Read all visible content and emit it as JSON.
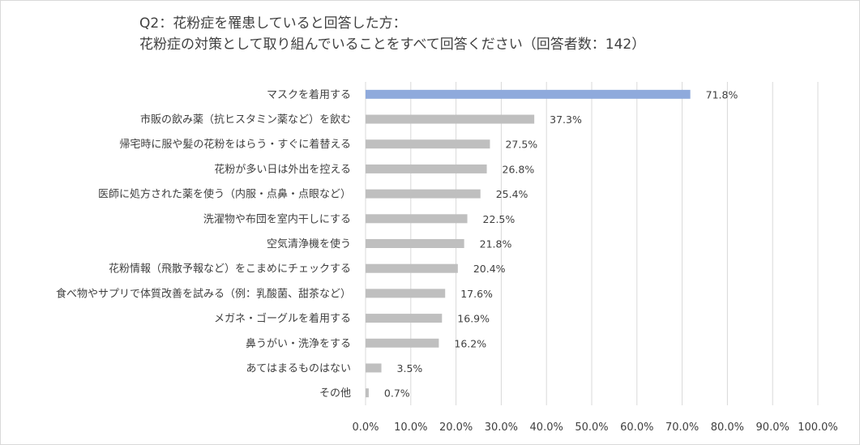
{
  "chart_data": {
    "type": "bar",
    "orientation": "horizontal",
    "title_lines": [
      "Q2：花粉症を罹患していると回答した方：",
      "花粉症の対策として取り組んでいることをすべて回答ください（回答者数：142）"
    ],
    "categories": [
      "マスクを着用する",
      "市販の飲み薬（抗ヒスタミン薬など）を飲む",
      "帰宅時に服や髪の花粉をはらう・すぐに着替える",
      "花粉が多い日は外出を控える",
      "医師に処方された薬を使う（内服・点鼻・点眼など）",
      "洗濯物や布団を室内干しにする",
      "空気清浄機を使う",
      "花粉情報（飛散予報など）をこまめにチェックする",
      "食べ物やサプリで体質改善を試みる（例：乳酸菌、甜茶など）",
      "メガネ・ゴーグルを着用する",
      "鼻うがい・洗浄をする",
      "あてはまるものはない",
      "その他"
    ],
    "values": [
      71.8,
      37.3,
      27.5,
      26.8,
      25.4,
      22.5,
      21.8,
      20.4,
      17.6,
      16.9,
      16.2,
      3.5,
      0.7
    ],
    "value_labels": [
      "71.8%",
      "37.3%",
      "27.5%",
      "26.8%",
      "25.4%",
      "22.5%",
      "21.8%",
      "20.4%",
      "17.6%",
      "16.9%",
      "16.2%",
      "3.5%",
      "0.7%"
    ],
    "xlim": [
      0,
      100
    ],
    "xticks": [
      "0.0%",
      "10.0%",
      "20.0%",
      "30.0%",
      "40.0%",
      "50.0%",
      "60.0%",
      "70.0%",
      "80.0%",
      "90.0%",
      "100.0%"
    ],
    "grid": true,
    "colors": {
      "highlight": "#8faadc",
      "default": "#bfbfbf",
      "grid": "#d9d9d9",
      "text": "#404040"
    }
  }
}
